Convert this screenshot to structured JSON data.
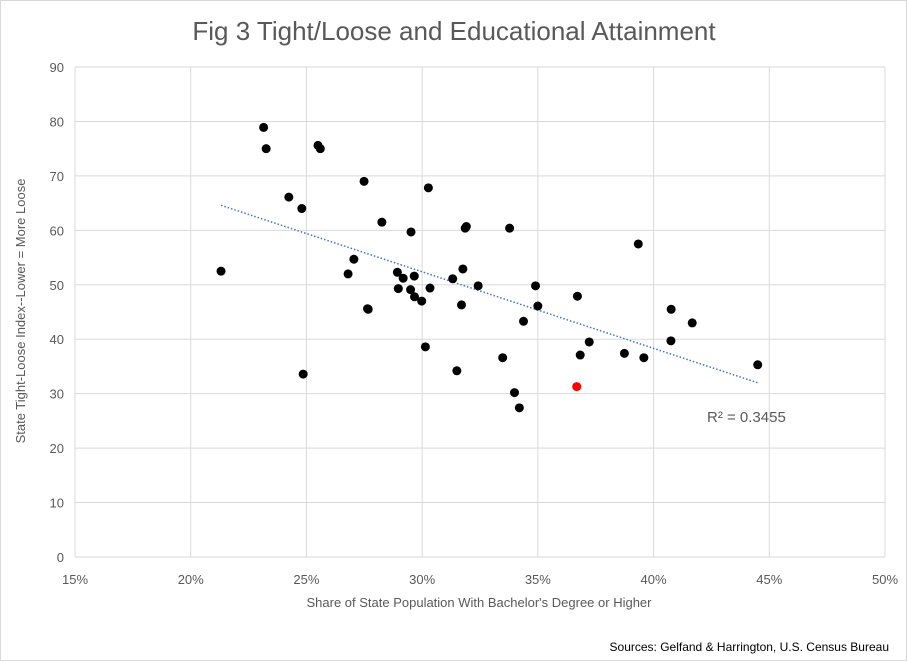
{
  "chart_data": {
    "type": "scatter",
    "title": "Fig 3 Tight/Loose and Educational Attainment",
    "xlabel": "Share of State Population With Bachelor's Degree or Higher",
    "ylabel": "State Tight-Loose Index--Lower = More Loose",
    "xlim": [
      0.15,
      0.5
    ],
    "ylim": [
      0,
      90
    ],
    "x_ticks": [
      "15%",
      "20%",
      "25%",
      "30%",
      "35%",
      "40%",
      "45%",
      "50%"
    ],
    "y_ticks": [
      "0",
      "10",
      "20",
      "30",
      "40",
      "50",
      "60",
      "70",
      "80",
      "90"
    ],
    "grid": true,
    "legend": "none",
    "point_color": "#000000",
    "highlight_color": "#ff0000",
    "trendline_color": "#4472c4",
    "points": [
      {
        "x": 0.2131,
        "y": 52.5
      },
      {
        "x": 0.2315,
        "y": 78.9
      },
      {
        "x": 0.2326,
        "y": 75.0
      },
      {
        "x": 0.2424,
        "y": 66.1
      },
      {
        "x": 0.248,
        "y": 64.0
      },
      {
        "x": 0.2486,
        "y": 33.6
      },
      {
        "x": 0.255,
        "y": 75.6
      },
      {
        "x": 0.256,
        "y": 75.0
      },
      {
        "x": 0.268,
        "y": 52.0
      },
      {
        "x": 0.2705,
        "y": 54.7
      },
      {
        "x": 0.2749,
        "y": 69.0
      },
      {
        "x": 0.2764,
        "y": 45.6
      },
      {
        "x": 0.2767,
        "y": 45.5
      },
      {
        "x": 0.2826,
        "y": 61.5
      },
      {
        "x": 0.2893,
        "y": 52.3
      },
      {
        "x": 0.2897,
        "y": 49.3
      },
      {
        "x": 0.2918,
        "y": 51.2
      },
      {
        "x": 0.295,
        "y": 49.1
      },
      {
        "x": 0.2952,
        "y": 59.7
      },
      {
        "x": 0.2966,
        "y": 51.6
      },
      {
        "x": 0.2967,
        "y": 47.8
      },
      {
        "x": 0.2998,
        "y": 47.0
      },
      {
        "x": 0.3014,
        "y": 38.6
      },
      {
        "x": 0.3027,
        "y": 67.8
      },
      {
        "x": 0.3034,
        "y": 49.4
      },
      {
        "x": 0.3132,
        "y": 51.1
      },
      {
        "x": 0.315,
        "y": 34.2
      },
      {
        "x": 0.317,
        "y": 46.3
      },
      {
        "x": 0.3176,
        "y": 52.9
      },
      {
        "x": 0.3186,
        "y": 60.4
      },
      {
        "x": 0.3191,
        "y": 60.7
      },
      {
        "x": 0.3242,
        "y": 49.8
      },
      {
        "x": 0.3348,
        "y": 36.6
      },
      {
        "x": 0.3378,
        "y": 60.4
      },
      {
        "x": 0.3399,
        "y": 30.2
      },
      {
        "x": 0.342,
        "y": 27.4
      },
      {
        "x": 0.3438,
        "y": 43.3
      },
      {
        "x": 0.349,
        "y": 49.8
      },
      {
        "x": 0.35,
        "y": 46.1
      },
      {
        "x": 0.3668,
        "y": 31.3,
        "highlight": true
      },
      {
        "x": 0.3671,
        "y": 47.9
      },
      {
        "x": 0.3683,
        "y": 37.1
      },
      {
        "x": 0.3722,
        "y": 39.5
      },
      {
        "x": 0.3874,
        "y": 37.4
      },
      {
        "x": 0.3934,
        "y": 57.5
      },
      {
        "x": 0.3958,
        "y": 36.6
      },
      {
        "x": 0.4075,
        "y": 39.7
      },
      {
        "x": 0.4076,
        "y": 45.5
      },
      {
        "x": 0.4167,
        "y": 43.0
      },
      {
        "x": 0.445,
        "y": 35.3
      }
    ],
    "trendline": {
      "x": [
        0.2131,
        0.445
      ],
      "y": [
        64.6,
        32.0
      ]
    },
    "annotation": "R² = 0.3455",
    "source": "Sources: Gelfand & Harrington, U.S. Census Bureau"
  }
}
